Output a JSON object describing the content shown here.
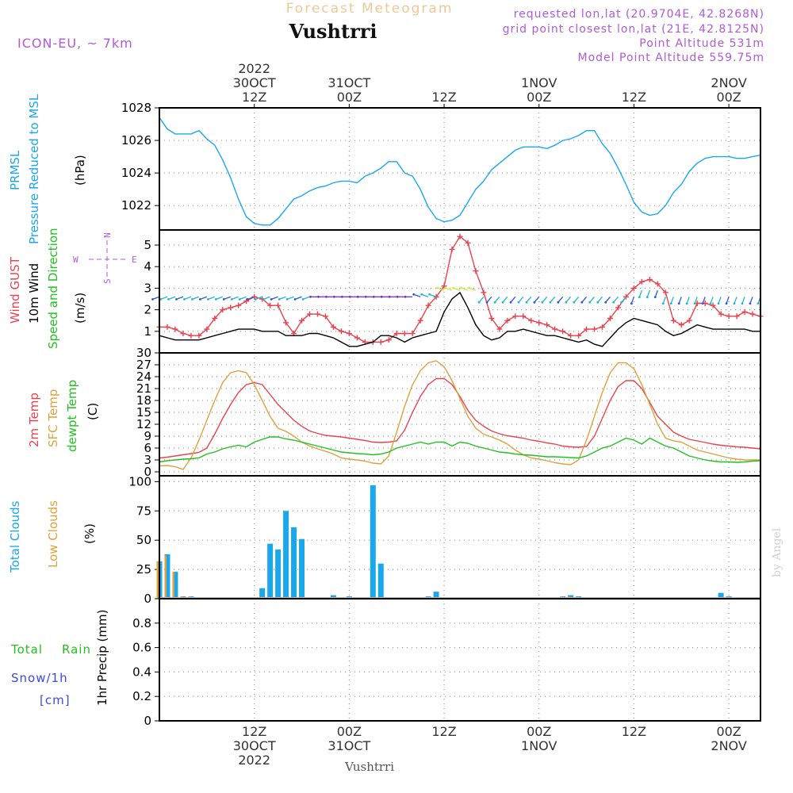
{
  "header": {
    "subtitle": "Forecast Meteogram",
    "location": "Vushtrri",
    "model": "ICON-EU, ~ 7km",
    "requested": "requested lon,lat (20.9704E, 42.8268N)",
    "grid": "grid point closest lon,lat (21E, 42.8125N)",
    "point_alt": "Point Altitude 531m",
    "model_alt": "Model Point Altitude 559.75m"
  },
  "footer_label": "Vushtrri",
  "watermark": "by Angel",
  "compass": {
    "n": "N",
    "s": "S",
    "w": "W",
    "e": "E"
  },
  "colors": {
    "pressure": "#1aa7ec",
    "gust": "#e8434f",
    "wind": "#000000",
    "temp2m": "#e8434f",
    "sfc": "#e0a13a",
    "dewpt": "#22c022",
    "total_clouds": "#1aa7ec",
    "low_clouds": "#e0a13a",
    "rain": "#22c022",
    "snow": "#3a4ae0",
    "header_purple": "#b05ad8",
    "header_orange": "#f0c898"
  },
  "time_axis": {
    "top": [
      {
        "t": 12,
        "lines": [
          "2022",
          "30OCT",
          "12Z"
        ]
      },
      {
        "t": 24,
        "lines": [
          "31OCT",
          "00Z"
        ]
      },
      {
        "t": 36,
        "lines": [
          "12Z"
        ]
      },
      {
        "t": 48,
        "lines": [
          "1NOV",
          "00Z"
        ]
      },
      {
        "t": 60,
        "lines": [
          "12Z"
        ]
      },
      {
        "t": 72,
        "lines": [
          "2NOV",
          "00Z"
        ]
      }
    ],
    "bottom": [
      {
        "t": 12,
        "lines": [
          "12Z",
          "30OCT",
          "2022"
        ]
      },
      {
        "t": 24,
        "lines": [
          "00Z",
          "31OCT"
        ]
      },
      {
        "t": 36,
        "lines": [
          "12Z"
        ]
      },
      {
        "t": 48,
        "lines": [
          "00Z",
          "1NOV"
        ]
      },
      {
        "t": 60,
        "lines": [
          "12Z"
        ]
      },
      {
        "t": 72,
        "lines": [
          "00Z",
          "2NOV"
        ]
      }
    ]
  },
  "chart_data": [
    {
      "type": "line",
      "panel": "pressure",
      "labels": [
        "PRMSL",
        "Pressure Reduced to MSL"
      ],
      "ylabel": "(hPa)",
      "ylim": [
        1020.5,
        1028
      ],
      "yticks": [
        1022,
        1024,
        1026,
        1028
      ],
      "grid": true,
      "x": [
        0,
        1,
        2,
        3,
        4,
        5,
        6,
        7,
        8,
        9,
        10,
        11,
        12,
        13,
        14,
        15,
        16,
        17,
        18,
        19,
        20,
        21,
        22,
        23,
        24,
        25,
        26,
        27,
        28,
        29,
        30,
        31,
        32,
        33,
        34,
        35,
        36,
        37,
        38,
        39,
        40,
        41,
        42,
        43,
        44,
        45,
        46,
        47,
        48,
        49,
        50,
        51,
        52,
        53,
        54,
        55,
        56,
        57,
        58,
        59,
        60,
        61,
        62,
        63,
        64,
        65,
        66,
        67,
        68,
        69,
        70,
        71,
        72,
        73,
        74,
        75,
        76
      ],
      "series": [
        {
          "name": "PRMSL",
          "values": [
            1027.4,
            1026.7,
            1026.4,
            1026.4,
            1026.4,
            1026.6,
            1026.1,
            1025.7,
            1024.8,
            1023.7,
            1022.4,
            1021.3,
            1020.9,
            1020.8,
            1020.8,
            1021.2,
            1021.8,
            1022.4,
            1022.6,
            1022.9,
            1023.1,
            1023.2,
            1023.4,
            1023.5,
            1023.5,
            1023.4,
            1023.8,
            1024.0,
            1024.3,
            1024.7,
            1024.7,
            1024.0,
            1023.8,
            1023.0,
            1021.9,
            1021.2,
            1021.0,
            1021.1,
            1021.4,
            1022.2,
            1023.0,
            1023.5,
            1024.2,
            1024.6,
            1025.0,
            1025.4,
            1025.6,
            1025.6,
            1025.6,
            1025.5,
            1025.7,
            1026.0,
            1026.1,
            1026.3,
            1026.6,
            1026.6,
            1025.8,
            1025.2,
            1024.3,
            1023.3,
            1022.2,
            1021.6,
            1021.4,
            1021.5,
            1022.0,
            1022.8,
            1023.3,
            1024.1,
            1024.6,
            1024.9,
            1025.0,
            1025.0,
            1025.0,
            1024.9,
            1024.9,
            1025.0,
            1025.1
          ]
        }
      ]
    },
    {
      "type": "line",
      "panel": "wind",
      "labels": [
        "Wind GUST",
        "10m Wind",
        "Speed and Direction"
      ],
      "ylabel": "(m/s)",
      "ylim": [
        0,
        5.7
      ],
      "yticks": [
        1,
        2,
        3,
        4,
        5
      ],
      "grid": true,
      "x": [
        0,
        1,
        2,
        3,
        4,
        5,
        6,
        7,
        8,
        9,
        10,
        11,
        12,
        13,
        14,
        15,
        16,
        17,
        18,
        19,
        20,
        21,
        22,
        23,
        24,
        25,
        26,
        27,
        28,
        29,
        30,
        31,
        32,
        33,
        34,
        35,
        36,
        37,
        38,
        39,
        40,
        41,
        42,
        43,
        44,
        45,
        46,
        47,
        48,
        49,
        50,
        51,
        52,
        53,
        54,
        55,
        56,
        57,
        58,
        59,
        60,
        61,
        62,
        63,
        64,
        65,
        66,
        67,
        68,
        69,
        70,
        71,
        72,
        73,
        74,
        75,
        76
      ],
      "series": [
        {
          "name": "Wind GUST",
          "values": [
            1.2,
            1.2,
            1.1,
            0.9,
            0.8,
            0.8,
            1.1,
            1.6,
            2.0,
            2.1,
            2.2,
            2.4,
            2.6,
            2.5,
            2.2,
            2.2,
            1.4,
            0.9,
            1.5,
            1.8,
            1.8,
            1.7,
            1.2,
            1.0,
            0.9,
            0.7,
            0.5,
            0.5,
            0.5,
            0.6,
            0.9,
            0.9,
            0.9,
            1.5,
            2.2,
            2.6,
            3.1,
            4.8,
            5.4,
            5.1,
            3.8,
            2.8,
            1.6,
            1.1,
            1.5,
            1.7,
            1.7,
            1.5,
            1.4,
            1.3,
            1.1,
            1.0,
            0.8,
            0.8,
            1.1,
            1.1,
            1.2,
            1.6,
            2.1,
            2.6,
            3.0,
            3.3,
            3.4,
            3.2,
            2.8,
            1.5,
            1.3,
            1.5,
            2.3,
            2.3,
            2.2,
            1.8,
            1.7,
            1.7,
            1.9,
            1.8,
            1.7
          ]
        },
        {
          "name": "10m Wind",
          "values": [
            0.8,
            0.7,
            0.6,
            0.6,
            0.6,
            0.6,
            0.7,
            0.8,
            0.9,
            1.0,
            1.1,
            1.1,
            1.1,
            1.0,
            1.0,
            1.0,
            0.8,
            0.8,
            0.8,
            0.9,
            0.9,
            0.8,
            0.7,
            0.5,
            0.3,
            0.3,
            0.4,
            0.5,
            0.8,
            0.8,
            0.7,
            0.5,
            0.7,
            0.8,
            0.9,
            1.0,
            1.9,
            2.5,
            2.8,
            2.1,
            1.3,
            0.8,
            0.6,
            0.7,
            1.0,
            1.0,
            1.1,
            1.0,
            0.9,
            0.8,
            0.8,
            0.7,
            0.6,
            0.5,
            0.6,
            0.4,
            0.3,
            0.7,
            1.1,
            1.4,
            1.6,
            1.5,
            1.4,
            1.3,
            1.0,
            0.8,
            0.9,
            1.1,
            1.3,
            1.2,
            1.1,
            1.1,
            1.1,
            1.1,
            1.1,
            1.0,
            1.0
          ]
        }
      ]
    },
    {
      "type": "line",
      "panel": "temperature",
      "labels": [
        "2m Temp",
        "SFC Temp",
        "dewpt Temp"
      ],
      "ylabel": "(C)",
      "ylim": [
        -1,
        30
      ],
      "yticks": [
        0,
        3,
        6,
        9,
        12,
        15,
        18,
        21,
        24,
        27,
        30
      ],
      "grid": true,
      "x": [
        0,
        1,
        2,
        3,
        4,
        5,
        6,
        7,
        8,
        9,
        10,
        11,
        12,
        13,
        14,
        15,
        16,
        17,
        18,
        19,
        20,
        21,
        22,
        23,
        24,
        25,
        26,
        27,
        28,
        29,
        30,
        31,
        32,
        33,
        34,
        35,
        36,
        37,
        38,
        39,
        40,
        41,
        42,
        43,
        44,
        45,
        46,
        47,
        48,
        49,
        50,
        51,
        52,
        53,
        54,
        55,
        56,
        57,
        58,
        59,
        60,
        61,
        62,
        63,
        64,
        65,
        66,
        67,
        68,
        69,
        70,
        71,
        72,
        73,
        74,
        75,
        76
      ],
      "series": [
        {
          "name": "2m Temp",
          "values": [
            3.5,
            3.7,
            4.0,
            4.3,
            4.6,
            4.9,
            6.0,
            9.5,
            13.5,
            17.0,
            20.0,
            22.0,
            22.5,
            22.0,
            19.5,
            17.0,
            15.0,
            13.0,
            11.5,
            10.3,
            9.7,
            9.2,
            9.0,
            8.8,
            8.5,
            8.2,
            7.9,
            7.5,
            7.4,
            7.5,
            7.8,
            10.5,
            15.0,
            19.0,
            22.0,
            23.5,
            23.5,
            22.0,
            19.0,
            15.5,
            13.0,
            11.5,
            10.3,
            9.6,
            9.1,
            8.8,
            8.5,
            8.0,
            7.7,
            7.3,
            7.0,
            6.5,
            6.3,
            6.2,
            6.4,
            9.0,
            13.5,
            18.0,
            21.5,
            23.0,
            23.0,
            21.0,
            17.5,
            14.0,
            12.0,
            10.0,
            9.0,
            8.2,
            7.8,
            7.4,
            7.0,
            6.7,
            6.5,
            6.3,
            6.2,
            6.0,
            5.8
          ]
        },
        {
          "name": "SFC Temp",
          "values": [
            1.5,
            1.6,
            1.3,
            0.6,
            3.5,
            8.0,
            13.0,
            18.0,
            22.5,
            25.0,
            25.5,
            25.0,
            22.0,
            18.0,
            14.0,
            11.0,
            10.2,
            9.0,
            7.5,
            6.5,
            5.8,
            5.2,
            4.5,
            3.5,
            3.2,
            3.0,
            2.7,
            2.2,
            2.0,
            4.0,
            10.0,
            16.5,
            22.0,
            25.5,
            27.5,
            28.0,
            26.5,
            23.0,
            18.5,
            14.0,
            11.0,
            9.5,
            8.8,
            8.0,
            7.0,
            5.5,
            4.3,
            3.5,
            3.2,
            2.8,
            2.3,
            2.0,
            1.8,
            3.0,
            8.0,
            14.0,
            20.0,
            25.0,
            27.5,
            27.5,
            26.0,
            22.0,
            17.0,
            12.0,
            8.5,
            7.8,
            7.5,
            6.5,
            5.5,
            5.0,
            4.5,
            4.0,
            3.5,
            3.2,
            3.0,
            3.0,
            3.0
          ]
        },
        {
          "name": "dewpt Temp",
          "values": [
            2.5,
            2.8,
            3.0,
            3.2,
            3.3,
            3.5,
            4.5,
            5.0,
            5.8,
            6.3,
            6.7,
            6.3,
            7.5,
            8.2,
            8.8,
            8.8,
            8.3,
            8.0,
            7.5,
            7.0,
            6.5,
            6.0,
            5.5,
            5.0,
            4.8,
            4.6,
            4.5,
            4.3,
            4.5,
            5.0,
            6.0,
            6.5,
            7.0,
            7.5,
            7.0,
            7.5,
            7.5,
            6.5,
            7.5,
            7.2,
            6.5,
            6.0,
            5.5,
            5.0,
            4.8,
            4.5,
            4.3,
            4.2,
            4.0,
            3.8,
            3.8,
            3.7,
            3.6,
            3.5,
            4.0,
            5.0,
            6.0,
            6.5,
            7.5,
            8.5,
            8.0,
            7.0,
            8.5,
            7.5,
            6.5,
            6.0,
            5.0,
            4.0,
            3.5,
            3.0,
            2.7,
            2.5,
            2.5,
            2.4,
            2.5,
            2.7,
            2.8
          ]
        }
      ]
    },
    {
      "type": "bar",
      "panel": "clouds",
      "labels": [
        "Total Clouds",
        "Low Clouds"
      ],
      "ylabel": "(%)",
      "ylim": [
        0,
        105
      ],
      "yticks": [
        0,
        25,
        50,
        75,
        100
      ],
      "grid": true,
      "x": [
        0,
        1,
        2,
        3,
        4,
        5,
        6,
        7,
        8,
        9,
        10,
        11,
        12,
        13,
        14,
        15,
        16,
        17,
        18,
        19,
        20,
        21,
        22,
        23,
        24,
        25,
        26,
        27,
        28,
        29,
        30,
        31,
        32,
        33,
        34,
        35,
        36,
        37,
        38,
        39,
        40,
        41,
        42,
        43,
        44,
        45,
        46,
        47,
        48,
        49,
        50,
        51,
        52,
        53,
        54,
        55,
        56,
        57,
        58,
        59,
        60,
        61,
        62,
        63,
        64,
        65,
        66,
        67,
        68,
        69,
        70,
        71,
        72,
        73,
        74,
        75,
        76
      ],
      "series": [
        {
          "name": "Total Clouds",
          "values": [
            32,
            38,
            23,
            2,
            2,
            1,
            1,
            0,
            0,
            0,
            0,
            0,
            0,
            9,
            47,
            42,
            75,
            61,
            51,
            0,
            0,
            0,
            3,
            0,
            2,
            0,
            1,
            97,
            30,
            0,
            0,
            0,
            0,
            1,
            2,
            6,
            0,
            0,
            0,
            0,
            0,
            0,
            0,
            0,
            0,
            0,
            0,
            0,
            0,
            0,
            0,
            2,
            3,
            2,
            1,
            0,
            0,
            0,
            0,
            0,
            0,
            0,
            0,
            0,
            0,
            0,
            0,
            0,
            0,
            0,
            0,
            5,
            2,
            0,
            0,
            0,
            0
          ]
        },
        {
          "name": "Low Clouds",
          "values": [
            32,
            37,
            23,
            2,
            2,
            1,
            0,
            0,
            0,
            0,
            0,
            0,
            0,
            0,
            0,
            0,
            0,
            0,
            0,
            0,
            0,
            0,
            0,
            0,
            0,
            0,
            0,
            0,
            0,
            0,
            0,
            0,
            0,
            0,
            0,
            0,
            0,
            0,
            0,
            0,
            0,
            0,
            0,
            0,
            0,
            0,
            0,
            0,
            0,
            0,
            0,
            2,
            2,
            1,
            0,
            0,
            0,
            0,
            0,
            0,
            0,
            0,
            0,
            0,
            0,
            0,
            0,
            0,
            0,
            0,
            0,
            0,
            0,
            0,
            0,
            0,
            0
          ]
        }
      ]
    },
    {
      "type": "bar",
      "panel": "precip",
      "labels": [
        "Total",
        "Rain",
        "Snow/1h",
        "[cm]"
      ],
      "ylabel": "1hr Precip (mm)",
      "ylim": [
        0,
        1.0
      ],
      "yticks": [
        0,
        0.2,
        0.4,
        0.6,
        0.8
      ],
      "ytick_labels": [
        "0",
        "0.2",
        "0.4",
        "0.6",
        "0.8"
      ],
      "grid": true,
      "x": [],
      "series": [
        {
          "name": "Total",
          "values": []
        },
        {
          "name": "Rain",
          "values": []
        }
      ]
    }
  ]
}
